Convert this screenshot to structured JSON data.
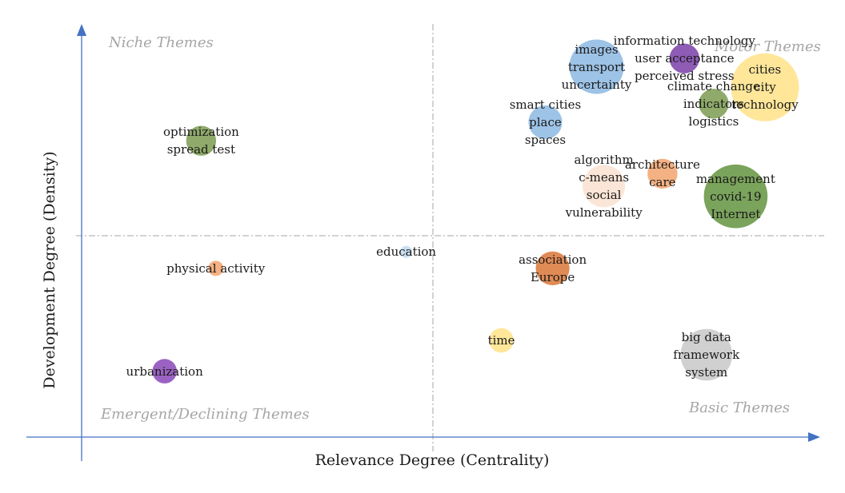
{
  "chart_data": {
    "type": "scatter",
    "xlabel": "Relevance Degree (Centrality)",
    "ylabel": "Development Degree (Density)",
    "quadrants": {
      "top_left": "Niche Themes",
      "top_right": "Motor Themes",
      "bottom_left": "Emergent/Declining Themes",
      "bottom_right": "Basic Themes"
    },
    "points": [
      {
        "id": "p-images",
        "x": 0.7,
        "y": 0.8,
        "size": 1.0,
        "color": "#9dc3e6",
        "labels": [
          "images",
          "transport",
          "uncertainty"
        ]
      },
      {
        "id": "p-infotech",
        "x": 0.82,
        "y": 0.84,
        "size": 0.55,
        "color": "#8e5bb5",
        "labels": [
          "information technology",
          "user acceptance",
          "perceived stress"
        ]
      },
      {
        "id": "p-cities",
        "x": 0.93,
        "y": 0.7,
        "size": 1.25,
        "color": "#ffe699",
        "labels": [
          "cities",
          "city",
          "technology"
        ]
      },
      {
        "id": "p-climate",
        "x": 0.86,
        "y": 0.62,
        "size": 0.55,
        "color": "#8faa6a",
        "labels": [
          "climate change",
          "indicators",
          "logistics"
        ]
      },
      {
        "id": "p-smart",
        "x": 0.63,
        "y": 0.53,
        "size": 0.62,
        "color": "#9dc3e6",
        "labels": [
          "smart cities",
          "place",
          "spaces"
        ]
      },
      {
        "id": "p-algorithm",
        "x": 0.71,
        "y": 0.22,
        "size": 0.78,
        "color": "#fbe5d6",
        "labels": [
          "algorithm",
          "c-means",
          "social",
          "vulnerability"
        ]
      },
      {
        "id": "p-architecture",
        "x": 0.79,
        "y": 0.28,
        "size": 0.55,
        "color": "#f4b183",
        "labels": [
          "architecture",
          "care"
        ]
      },
      {
        "id": "p-management",
        "x": 0.89,
        "y": 0.17,
        "size": 1.17,
        "color": "#7aa35b",
        "labels": [
          "management",
          "covid-19",
          "Internet"
        ]
      },
      {
        "id": "p-optimization",
        "x": 0.16,
        "y": 0.44,
        "size": 0.55,
        "color": "#8faa6a",
        "labels": [
          "optimization",
          "spread test"
        ]
      },
      {
        "id": "p-education",
        "x": 0.44,
        "y": -0.1,
        "size": 0.22,
        "color": "#c9dff2",
        "labels": [
          "education"
        ]
      },
      {
        "id": "p-physical",
        "x": 0.18,
        "y": -0.18,
        "size": 0.28,
        "color": "#f4b183",
        "labels": [
          "physical activity"
        ]
      },
      {
        "id": "p-association",
        "x": 0.64,
        "y": -0.18,
        "size": 0.62,
        "color": "#e08a55",
        "labels": [
          "association",
          "Europe"
        ]
      },
      {
        "id": "p-time",
        "x": 0.57,
        "y": -0.53,
        "size": 0.45,
        "color": "#ffe699",
        "labels": [
          "time"
        ]
      },
      {
        "id": "p-bigdata",
        "x": 0.85,
        "y": -0.6,
        "size": 0.95,
        "color": "#d0d0d0",
        "labels": [
          "big data",
          "framework",
          "system"
        ]
      },
      {
        "id": "p-urbanization",
        "x": 0.11,
        "y": -0.68,
        "size": 0.45,
        "color": "#9a62c2",
        "labels": [
          "urbanization"
        ]
      }
    ],
    "xlim": [
      0,
      1
    ],
    "ylim": [
      -1,
      1
    ],
    "grid": false,
    "legend": "none",
    "axis_color": "#4472c4"
  }
}
